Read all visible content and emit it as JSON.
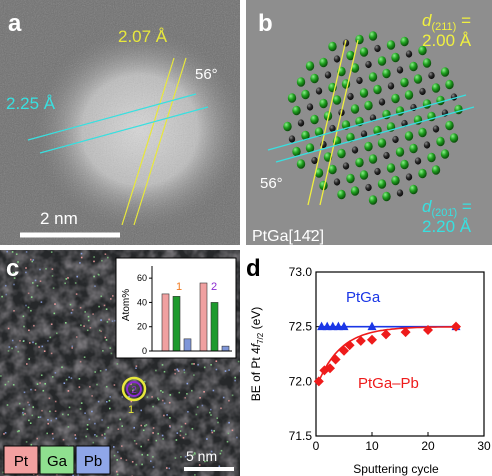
{
  "colors": {
    "yellow": "#e8e83c",
    "cyan": "#38e0e0",
    "green_atom": "#1fa01f",
    "dark_atom": "#2a2a2a",
    "pt_red": "#f3a0a0",
    "ga_green": "#8fe08f",
    "pb_blue": "#8fa6e8",
    "ptga_blue": "#1a36e6",
    "ptgapb_red": "#ee1b1b",
    "bar_pt": "#f0a0a0",
    "bar_ga": "#1e9a2e",
    "bar_pb": "#7f96d8"
  },
  "panel_a": {
    "label": "a",
    "d_yellow": "2.07 Å",
    "d_cyan": "2.25 Å",
    "angle": "56°",
    "scale": "2 nm"
  },
  "panel_b": {
    "label": "b",
    "d211_prefix": "d",
    "d211_sub": "(211)",
    "d211_eq": " =",
    "d211_val": "2.00 Å",
    "d201_prefix": "d",
    "d201_sub": "(201̄)",
    "d201_eq": " =",
    "d201_val": "2.20 Å",
    "angle": "56°",
    "zone_axis": "PtGa[14̄2]"
  },
  "panel_c": {
    "label": "c",
    "inset_ylabel": "Atom%",
    "inset_yticks": [
      "0",
      "20",
      "40",
      "60"
    ],
    "point1": "1",
    "point2": "2",
    "legend": [
      "Pt",
      "Ga",
      "Pb"
    ],
    "scale": "5 nm"
  },
  "panel_d": {
    "label": "d",
    "series_blue_label": "PtGa",
    "series_red_label": "PtGa–Pb",
    "ylabel_main": "BE of Pt 4",
    "ylabel_f": "f",
    "ylabel_sub": "7/2",
    "ylabel_tail": " (eV)",
    "xlabel": "Sputtering cycle",
    "yticks": [
      "71.5",
      "72.0",
      "72.5",
      "73.0"
    ],
    "xticks": [
      "0",
      "10",
      "20",
      "30"
    ]
  },
  "chart_data": [
    {
      "type": "bar",
      "categories": [
        "Pt",
        "Ga",
        "Pb"
      ],
      "series": [
        {
          "name": "1",
          "values": [
            47,
            45,
            10
          ]
        },
        {
          "name": "2",
          "values": [
            56,
            40,
            4
          ]
        }
      ],
      "ylabel": "Atom%",
      "ylim": [
        0,
        70
      ]
    },
    {
      "type": "scatter",
      "xlabel": "Sputtering cycle",
      "ylabel": "BE of Pt 4f7/2 (eV)",
      "xlim": [
        0,
        30
      ],
      "ylim": [
        71.5,
        73.0
      ],
      "series": [
        {
          "name": "PtGa",
          "x": [
            1,
            2,
            3,
            4,
            5,
            10,
            25
          ],
          "y": [
            72.5,
            72.5,
            72.5,
            72.5,
            72.5,
            72.5,
            72.5
          ]
        },
        {
          "name": "PtGa–Pb",
          "x": [
            0.5,
            1.5,
            2.5,
            3.5,
            5,
            6,
            8,
            10,
            12.5,
            16,
            20,
            25
          ],
          "y": [
            72.0,
            72.1,
            72.12,
            72.2,
            72.28,
            72.33,
            72.37,
            72.38,
            72.43,
            72.45,
            72.47,
            72.5
          ]
        }
      ]
    }
  ]
}
